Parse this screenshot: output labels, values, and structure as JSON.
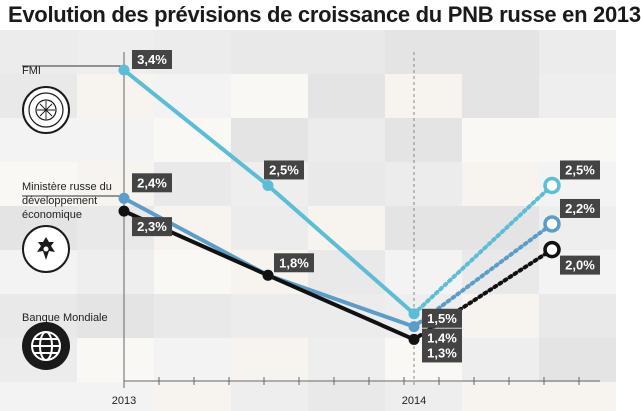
{
  "title": "Evolution des prévisions de croissance du PNB russe en 2013",
  "organizations": {
    "imf": "FMI",
    "ministry": "Ministère russe du développement économique",
    "world_bank": "Banque Mondiale"
  },
  "colors": {
    "imf": "#5bbdd6",
    "ministry": "#5a9dc8",
    "world_bank": "#111111",
    "label_bg": "#444444",
    "label_text": "#ffffff"
  },
  "logos": {
    "imf": "imf-seal-icon",
    "ministry": "russian-eagle-icon",
    "world_bank": "globe-icon"
  },
  "chart_data": {
    "type": "line",
    "title": "Evolution des prévisions de croissance du PNB russe en 2013",
    "x_tick_labels": [
      "2013",
      "2014"
    ],
    "x": [
      0,
      1,
      2,
      3
    ],
    "series": [
      {
        "name": "FMI",
        "values": [
          3.4,
          2.5,
          1.5,
          2.5
        ],
        "labels": [
          "3,4%",
          "2,5%",
          "1,5%",
          "2,5%"
        ],
        "forecast_from_index": 2
      },
      {
        "name": "Ministère russe du développement économique",
        "values": [
          2.4,
          1.8,
          1.4,
          2.2
        ],
        "labels": [
          "2,4%",
          "",
          "1,4%",
          "2,2%"
        ],
        "forecast_from_index": 2
      },
      {
        "name": "Banque Mondiale",
        "values": [
          2.3,
          1.8,
          1.3,
          2.0
        ],
        "labels": [
          "2,3%",
          "1,8%",
          "1,3%",
          "2,0%"
        ],
        "forecast_from_index": 2
      }
    ],
    "grid": false,
    "legend": "left"
  }
}
